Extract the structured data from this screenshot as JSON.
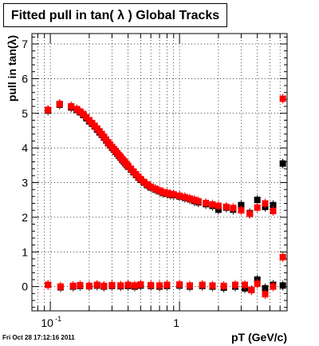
{
  "title": "Fitted pull in tan( λ )  Global Tracks",
  "footer_timestamp": "Fri Oct 28 17:12:16 2011",
  "chart_data": {
    "type": "scatter",
    "xlabel": "pT (GeV/c)",
    "ylabel": "pull in tan(λ)",
    "xscale": "log",
    "xlim": [
      0.072,
      6.8
    ],
    "ylim": [
      -0.7,
      7.3
    ],
    "x_tick_labels": [
      {
        "value": 0.1,
        "base": "10",
        "exp": "-1"
      },
      {
        "value": 1,
        "base": "1",
        "exp": ""
      }
    ],
    "y_ticks": [
      0,
      1,
      2,
      3,
      4,
      5,
      6,
      7
    ],
    "grid": true,
    "series": [
      {
        "color": "#000000",
        "points": [
          [
            0.096,
            5.08
          ],
          [
            0.118,
            5.25
          ],
          [
            0.145,
            5.17
          ],
          [
            0.16,
            5.1
          ],
          [
            0.17,
            5.03
          ],
          [
            0.18,
            4.95
          ],
          [
            0.19,
            4.86
          ],
          [
            0.2,
            4.77
          ],
          [
            0.21,
            4.7
          ],
          [
            0.22,
            4.62
          ],
          [
            0.23,
            4.53
          ],
          [
            0.24,
            4.45
          ],
          [
            0.25,
            4.38
          ],
          [
            0.26,
            4.3
          ],
          [
            0.27,
            4.22
          ],
          [
            0.28,
            4.14
          ],
          [
            0.29,
            4.08
          ],
          [
            0.3,
            4.01
          ],
          [
            0.31,
            3.95
          ],
          [
            0.32,
            3.89
          ],
          [
            0.33,
            3.83
          ],
          [
            0.34,
            3.77
          ],
          [
            0.35,
            3.72
          ],
          [
            0.36,
            3.66
          ],
          [
            0.37,
            3.61
          ],
          [
            0.38,
            3.56
          ],
          [
            0.39,
            3.51
          ],
          [
            0.4,
            3.46
          ],
          [
            0.42,
            3.38
          ],
          [
            0.44,
            3.3
          ],
          [
            0.46,
            3.22
          ],
          [
            0.48,
            3.15
          ],
          [
            0.5,
            3.08
          ],
          [
            0.53,
            3.0
          ],
          [
            0.56,
            2.93
          ],
          [
            0.6,
            2.86
          ],
          [
            0.65,
            2.8
          ],
          [
            0.7,
            2.75
          ],
          [
            0.75,
            2.7
          ],
          [
            0.8,
            2.68
          ],
          [
            0.85,
            2.65
          ],
          [
            0.9,
            2.64
          ],
          [
            1.0,
            2.6
          ],
          [
            1.1,
            2.56
          ],
          [
            1.2,
            2.52
          ],
          [
            1.3,
            2.47
          ],
          [
            1.4,
            2.43
          ],
          [
            1.6,
            2.38
          ],
          [
            1.8,
            2.33
          ],
          [
            2.0,
            2.22
          ],
          [
            2.3,
            2.28
          ],
          [
            2.6,
            2.22
          ],
          [
            3.0,
            2.35
          ],
          [
            3.5,
            2.12
          ],
          [
            4.0,
            2.5
          ],
          [
            4.6,
            2.3
          ],
          [
            5.3,
            2.35
          ],
          [
            6.3,
            3.55
          ],
          [
            0.096,
            0.05
          ],
          [
            0.12,
            -0.02
          ],
          [
            0.15,
            0.0
          ],
          [
            0.17,
            0.02
          ],
          [
            0.2,
            0.01
          ],
          [
            0.23,
            0.03
          ],
          [
            0.26,
            0.0
          ],
          [
            0.3,
            0.02
          ],
          [
            0.35,
            0.01
          ],
          [
            0.4,
            0.02
          ],
          [
            0.45,
            0.0
          ],
          [
            0.5,
            0.03
          ],
          [
            0.6,
            0.02
          ],
          [
            0.7,
            0.0
          ],
          [
            0.8,
            0.02
          ],
          [
            1.0,
            0.03
          ],
          [
            1.2,
            0.0
          ],
          [
            1.5,
            0.02
          ],
          [
            1.8,
            0.0
          ],
          [
            2.2,
            -0.03
          ],
          [
            2.7,
            0.0
          ],
          [
            3.2,
            -0.05
          ],
          [
            3.6,
            -0.1
          ],
          [
            4.0,
            0.2
          ],
          [
            4.6,
            -0.05
          ],
          [
            5.3,
            0.05
          ],
          [
            6.3,
            0.03
          ]
        ]
      },
      {
        "color": "#ff0000",
        "points": [
          [
            0.096,
            5.1
          ],
          [
            0.118,
            5.27
          ],
          [
            0.145,
            5.2
          ],
          [
            0.16,
            5.12
          ],
          [
            0.17,
            5.05
          ],
          [
            0.18,
            4.98
          ],
          [
            0.19,
            4.89
          ],
          [
            0.2,
            4.8
          ],
          [
            0.21,
            4.72
          ],
          [
            0.22,
            4.64
          ],
          [
            0.23,
            4.56
          ],
          [
            0.24,
            4.48
          ],
          [
            0.25,
            4.4
          ],
          [
            0.26,
            4.32
          ],
          [
            0.27,
            4.24
          ],
          [
            0.28,
            4.16
          ],
          [
            0.29,
            4.1
          ],
          [
            0.3,
            4.03
          ],
          [
            0.31,
            3.97
          ],
          [
            0.32,
            3.91
          ],
          [
            0.33,
            3.85
          ],
          [
            0.34,
            3.79
          ],
          [
            0.35,
            3.74
          ],
          [
            0.36,
            3.68
          ],
          [
            0.37,
            3.63
          ],
          [
            0.38,
            3.58
          ],
          [
            0.39,
            3.53
          ],
          [
            0.4,
            3.48
          ],
          [
            0.42,
            3.4
          ],
          [
            0.44,
            3.32
          ],
          [
            0.46,
            3.24
          ],
          [
            0.48,
            3.17
          ],
          [
            0.5,
            3.1
          ],
          [
            0.53,
            3.02
          ],
          [
            0.56,
            2.95
          ],
          [
            0.6,
            2.88
          ],
          [
            0.65,
            2.82
          ],
          [
            0.7,
            2.77
          ],
          [
            0.75,
            2.72
          ],
          [
            0.8,
            2.7
          ],
          [
            0.85,
            2.67
          ],
          [
            0.9,
            2.66
          ],
          [
            1.0,
            2.62
          ],
          [
            1.1,
            2.58
          ],
          [
            1.2,
            2.54
          ],
          [
            1.3,
            2.5
          ],
          [
            1.4,
            2.46
          ],
          [
            1.6,
            2.41
          ],
          [
            1.8,
            2.37
          ],
          [
            2.0,
            2.33
          ],
          [
            2.3,
            2.3
          ],
          [
            2.6,
            2.27
          ],
          [
            3.0,
            2.2
          ],
          [
            3.5,
            2.1
          ],
          [
            4.0,
            2.28
          ],
          [
            4.6,
            2.4
          ],
          [
            5.3,
            2.18
          ],
          [
            6.3,
            5.42
          ],
          [
            0.096,
            0.05
          ],
          [
            0.12,
            0.0
          ],
          [
            0.15,
            0.02
          ],
          [
            0.17,
            0.04
          ],
          [
            0.2,
            0.02
          ],
          [
            0.23,
            0.05
          ],
          [
            0.26,
            0.02
          ],
          [
            0.3,
            0.04
          ],
          [
            0.35,
            0.03
          ],
          [
            0.4,
            0.05
          ],
          [
            0.45,
            0.03
          ],
          [
            0.5,
            0.06
          ],
          [
            0.6,
            0.04
          ],
          [
            0.7,
            0.03
          ],
          [
            0.8,
            0.05
          ],
          [
            1.0,
            0.06
          ],
          [
            1.2,
            0.03
          ],
          [
            1.5,
            0.05
          ],
          [
            1.8,
            0.03
          ],
          [
            2.2,
            0.02
          ],
          [
            2.7,
            0.05
          ],
          [
            3.2,
            0.05
          ],
          [
            3.6,
            -0.1
          ],
          [
            4.0,
            0.08
          ],
          [
            4.6,
            -0.22
          ],
          [
            5.3,
            0.0
          ],
          [
            6.3,
            0.85
          ]
        ]
      }
    ]
  }
}
